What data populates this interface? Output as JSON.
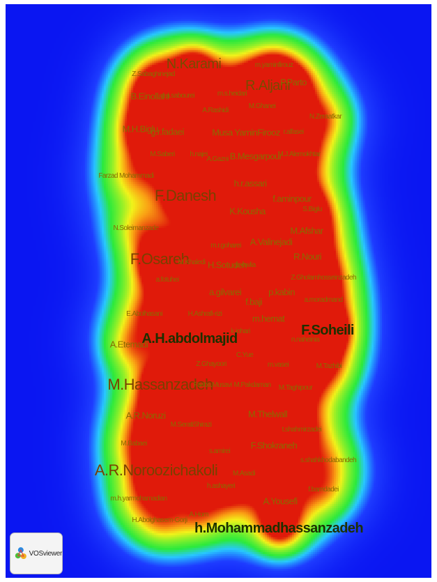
{
  "app": {
    "name": "VOSviewer"
  },
  "colors": {
    "background": "#0a16f2",
    "low": "#1f3cff",
    "mid": "#2bea3c",
    "high": "#f2f21a",
    "peak": "#e01a0a"
  },
  "nodes": [
    {
      "label": "N.Karami",
      "w": 0.7
    },
    {
      "label": "m.yaminfirouz",
      "w": 0.3
    },
    {
      "label": "Z.Sabaghinejad",
      "w": 0.3
    },
    {
      "label": "R.Aljani",
      "w": 0.8
    },
    {
      "label": "P.Parto",
      "w": 0.4
    },
    {
      "label": "B.Einollahi",
      "w": 0.4
    },
    {
      "label": "a.a.sabourei",
      "w": 0.3
    },
    {
      "label": "m.s.heidari",
      "w": 0.2
    },
    {
      "label": "A.Rashidi",
      "w": 0.3
    },
    {
      "label": "M.Ghanei",
      "w": 0.3
    },
    {
      "label": "N.Zeraatkar",
      "w": 0.3
    },
    {
      "label": "M.H.Biglu",
      "w": 0.4
    },
    {
      "label": "g.r.fadaei",
      "w": 0.4
    },
    {
      "label": "Musa YaminFirooz",
      "w": 0.4
    },
    {
      "label": "r.alfasei",
      "w": 0.3
    },
    {
      "label": "M.Saberi",
      "w": 0.3
    },
    {
      "label": "h.najei",
      "w": 0.2
    },
    {
      "label": "A.Gazni",
      "w": 0.3
    },
    {
      "label": "B.Mesgarpour",
      "w": 0.4
    },
    {
      "label": "M.J.Alemokhtar",
      "w": 0.3
    },
    {
      "label": "Farzad Mohammadi",
      "w": 0.2
    },
    {
      "label": "h.r.assari",
      "w": 0.4
    },
    {
      "label": "F.Danesh",
      "w": 1.0
    },
    {
      "label": "f.aminpour",
      "w": 0.6
    },
    {
      "label": "S.Biglu",
      "w": 0.3
    },
    {
      "label": "K.Kousha",
      "w": 0.4
    },
    {
      "label": "N.Soleimanzade",
      "w": 0.3
    },
    {
      "label": "M.Afshar",
      "w": 0.5
    },
    {
      "label": "A.Valinejadi",
      "w": 0.4
    },
    {
      "label": "m.r.goharei",
      "w": 0.2
    },
    {
      "label": "F.Osareh",
      "w": 1.0
    },
    {
      "label": "M.Khaledi",
      "w": 0.2
    },
    {
      "label": "H.Sotudeh",
      "w": 0.5
    },
    {
      "label": "p. owlia",
      "w": 0.2
    },
    {
      "label": "R.Nouri",
      "w": 0.4
    },
    {
      "label": "a.fotuhei",
      "w": 0.3
    },
    {
      "label": "Z.Gholamhosseinzadeh",
      "w": 0.3
    },
    {
      "label": "a.gilvarei",
      "w": 0.5
    },
    {
      "label": "p.kabin",
      "w": 0.5
    },
    {
      "label": "f.baji",
      "w": 0.4
    },
    {
      "label": "a.moradmand",
      "w": 0.2
    },
    {
      "label": "E.Abolhasani",
      "w": 0.3
    },
    {
      "label": "H.Ashrafi-rizi",
      "w": 0.3
    },
    {
      "label": "m.hemat",
      "w": 0.4
    },
    {
      "label": "k.johari",
      "w": 0.2
    },
    {
      "label": "F.Soheili",
      "w": 0.9
    },
    {
      "label": "A.H.abdolmajid",
      "w": 0.7
    },
    {
      "label": "A.Etemadi",
      "w": 0.4
    },
    {
      "label": "n.naheinia",
      "w": 0.2
    },
    {
      "label": "C.Yue",
      "w": 0.2
    },
    {
      "label": "M.Tazhibi",
      "w": 0.3
    },
    {
      "label": "Z.Ghayoori",
      "w": 0.3
    },
    {
      "label": "m.vasei",
      "w": 0.3
    },
    {
      "label": "M.Hassanzadeh",
      "w": 1.0
    },
    {
      "label": "Fariba.Musavi",
      "w": 0.2
    },
    {
      "label": "M.Pakdaman",
      "w": 0.3
    },
    {
      "label": "M.Taghipour",
      "w": 0.3
    },
    {
      "label": "A.R.Noruzi",
      "w": 0.4
    },
    {
      "label": "M.Thelwall",
      "w": 0.4
    },
    {
      "label": "M.SeratiShirazi",
      "w": 0.3
    },
    {
      "label": "t.shahmirzadei",
      "w": 0.3
    },
    {
      "label": "M.Babaei",
      "w": 0.3
    },
    {
      "label": "F.Shokraneh",
      "w": 0.5
    },
    {
      "label": "s.amirei",
      "w": 0.2
    },
    {
      "label": "s.shahkhodabandeh",
      "w": 0.2
    },
    {
      "label": "A.R.Noroozichakoli",
      "w": 1.0
    },
    {
      "label": "M.Asadi",
      "w": 0.3
    },
    {
      "label": "h.ashayeri",
      "w": 0.3
    },
    {
      "label": "f.bamdadei",
      "w": 0.3
    },
    {
      "label": "m.h.yarmohamadian",
      "w": 0.2
    },
    {
      "label": "A.Yousefi",
      "w": 0.5
    },
    {
      "label": "A.Hom",
      "w": 0.3
    },
    {
      "label": "H.Abolghasem-Gorji",
      "w": 0.3
    },
    {
      "label": "h.Mohammadhassanzadeh",
      "w": 0.9
    }
  ]
}
